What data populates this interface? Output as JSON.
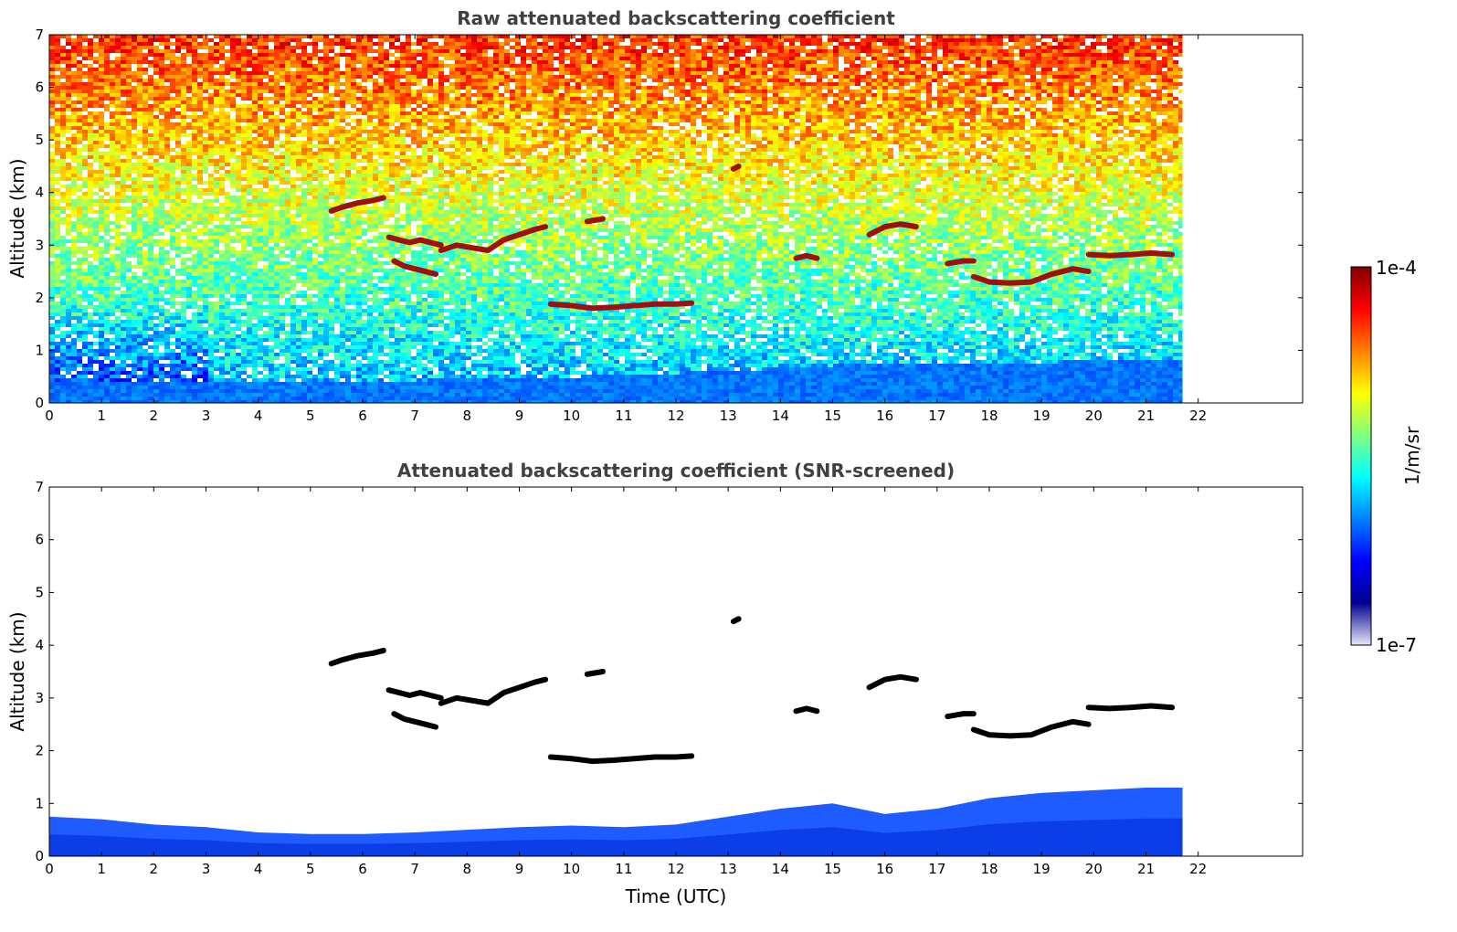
{
  "colors": {
    "jet": [
      "#00008f",
      "#0000ff",
      "#0080ff",
      "#00ffff",
      "#80ff80",
      "#ffff00",
      "#ff8000",
      "#ff0000",
      "#800000"
    ],
    "lowest": "#e6e6f8",
    "cloud_raw": "#a01010",
    "cloud_screened": "#000000"
  },
  "colorbar": {
    "label": "1/m/sr",
    "tick_top": "1e-4",
    "tick_bottom": "1e-7",
    "scale": "log",
    "vmin": 1e-07,
    "vmax": 0.0001
  },
  "chart_data": [
    {
      "type": "heatmap",
      "title": "Raw attenuated backscattering coefficient",
      "xlabel": "",
      "ylabel": "Altitude (km)",
      "xlim": [
        0,
        24
      ],
      "ylim": [
        0,
        7
      ],
      "xticks": [
        "0",
        "1",
        "2",
        "3",
        "4",
        "5",
        "6",
        "7",
        "8",
        "9",
        "10",
        "11",
        "12",
        "13",
        "14",
        "15",
        "16",
        "17",
        "18",
        "19",
        "20",
        "21",
        "22"
      ],
      "yticks": [
        "0",
        "1",
        "2",
        "3",
        "4",
        "5",
        "6",
        "7"
      ],
      "data_end_time": 21.7,
      "boundary_layer_top_km": [
        [
          0,
          0.45
        ],
        [
          3,
          0.42
        ],
        [
          6,
          0.45
        ],
        [
          9,
          0.5
        ],
        [
          12,
          0.6
        ],
        [
          15,
          0.75
        ],
        [
          18,
          0.8
        ],
        [
          21.7,
          0.85
        ]
      ],
      "cloud_layers": [
        {
          "x": [
            5.4,
            5.6,
            5.9,
            6.2,
            6.4
          ],
          "y": [
            3.65,
            3.72,
            3.8,
            3.85,
            3.9
          ]
        },
        {
          "x": [
            6.5,
            6.7,
            6.9,
            7.1,
            7.3,
            7.5
          ],
          "y": [
            3.15,
            3.1,
            3.05,
            3.1,
            3.05,
            3.0
          ]
        },
        {
          "x": [
            6.6,
            6.8,
            7.0,
            7.2,
            7.4
          ],
          "y": [
            2.7,
            2.6,
            2.55,
            2.5,
            2.45
          ]
        },
        {
          "x": [
            7.5,
            7.8,
            8.1,
            8.4,
            8.7,
            9.0,
            9.3,
            9.5
          ],
          "y": [
            2.9,
            3.0,
            2.95,
            2.9,
            3.1,
            3.2,
            3.3,
            3.35
          ]
        },
        {
          "x": [
            10.3,
            10.6
          ],
          "y": [
            3.45,
            3.5
          ]
        },
        {
          "x": [
            9.6,
            10.0,
            10.4,
            10.8,
            11.2,
            11.6,
            12.0,
            12.3
          ],
          "y": [
            1.88,
            1.85,
            1.8,
            1.82,
            1.85,
            1.88,
            1.88,
            1.9
          ]
        },
        {
          "x": [
            13.1,
            13.2
          ],
          "y": [
            4.45,
            4.5
          ]
        },
        {
          "x": [
            14.3,
            14.5,
            14.7
          ],
          "y": [
            2.75,
            2.8,
            2.75
          ]
        },
        {
          "x": [
            15.7,
            16.0,
            16.3,
            16.6
          ],
          "y": [
            3.2,
            3.35,
            3.4,
            3.35
          ]
        },
        {
          "x": [
            17.2,
            17.5,
            17.7
          ],
          "y": [
            2.65,
            2.7,
            2.7
          ]
        },
        {
          "x": [
            17.7,
            18.0,
            18.4,
            18.8,
            19.2,
            19.6,
            19.9
          ],
          "y": [
            2.4,
            2.3,
            2.28,
            2.3,
            2.45,
            2.55,
            2.5
          ]
        },
        {
          "x": [
            19.9,
            20.3,
            20.7,
            21.1,
            21.5
          ],
          "y": [
            2.82,
            2.8,
            2.82,
            2.85,
            2.82
          ]
        }
      ]
    },
    {
      "type": "heatmap",
      "title": "Attenuated backscattering coefficient (SNR-screened)",
      "xlabel": "Time (UTC)",
      "ylabel": "Altitude (km)",
      "xlim": [
        0,
        24
      ],
      "ylim": [
        0,
        7
      ],
      "xticks": [
        "0",
        "1",
        "2",
        "3",
        "4",
        "5",
        "6",
        "7",
        "8",
        "9",
        "10",
        "11",
        "12",
        "13",
        "14",
        "15",
        "16",
        "17",
        "18",
        "19",
        "20",
        "21",
        "22"
      ],
      "yticks": [
        "0",
        "1",
        "2",
        "3",
        "4",
        "5",
        "6",
        "7"
      ],
      "data_end_time": 21.7,
      "boundary_layer_top_km": [
        [
          0,
          0.75
        ],
        [
          1,
          0.7
        ],
        [
          2,
          0.6
        ],
        [
          3,
          0.55
        ],
        [
          4,
          0.45
        ],
        [
          5,
          0.42
        ],
        [
          6,
          0.42
        ],
        [
          7,
          0.45
        ],
        [
          8,
          0.5
        ],
        [
          9,
          0.55
        ],
        [
          10,
          0.58
        ],
        [
          11,
          0.55
        ],
        [
          12,
          0.6
        ],
        [
          13,
          0.75
        ],
        [
          14,
          0.9
        ],
        [
          15,
          1.0
        ],
        [
          15.5,
          0.9
        ],
        [
          16,
          0.8
        ],
        [
          17,
          0.9
        ],
        [
          18,
          1.1
        ],
        [
          19,
          1.2
        ],
        [
          20,
          1.25
        ],
        [
          21,
          1.3
        ],
        [
          21.7,
          1.3
        ]
      ],
      "cloud_layers": "same as raw panel"
    }
  ]
}
